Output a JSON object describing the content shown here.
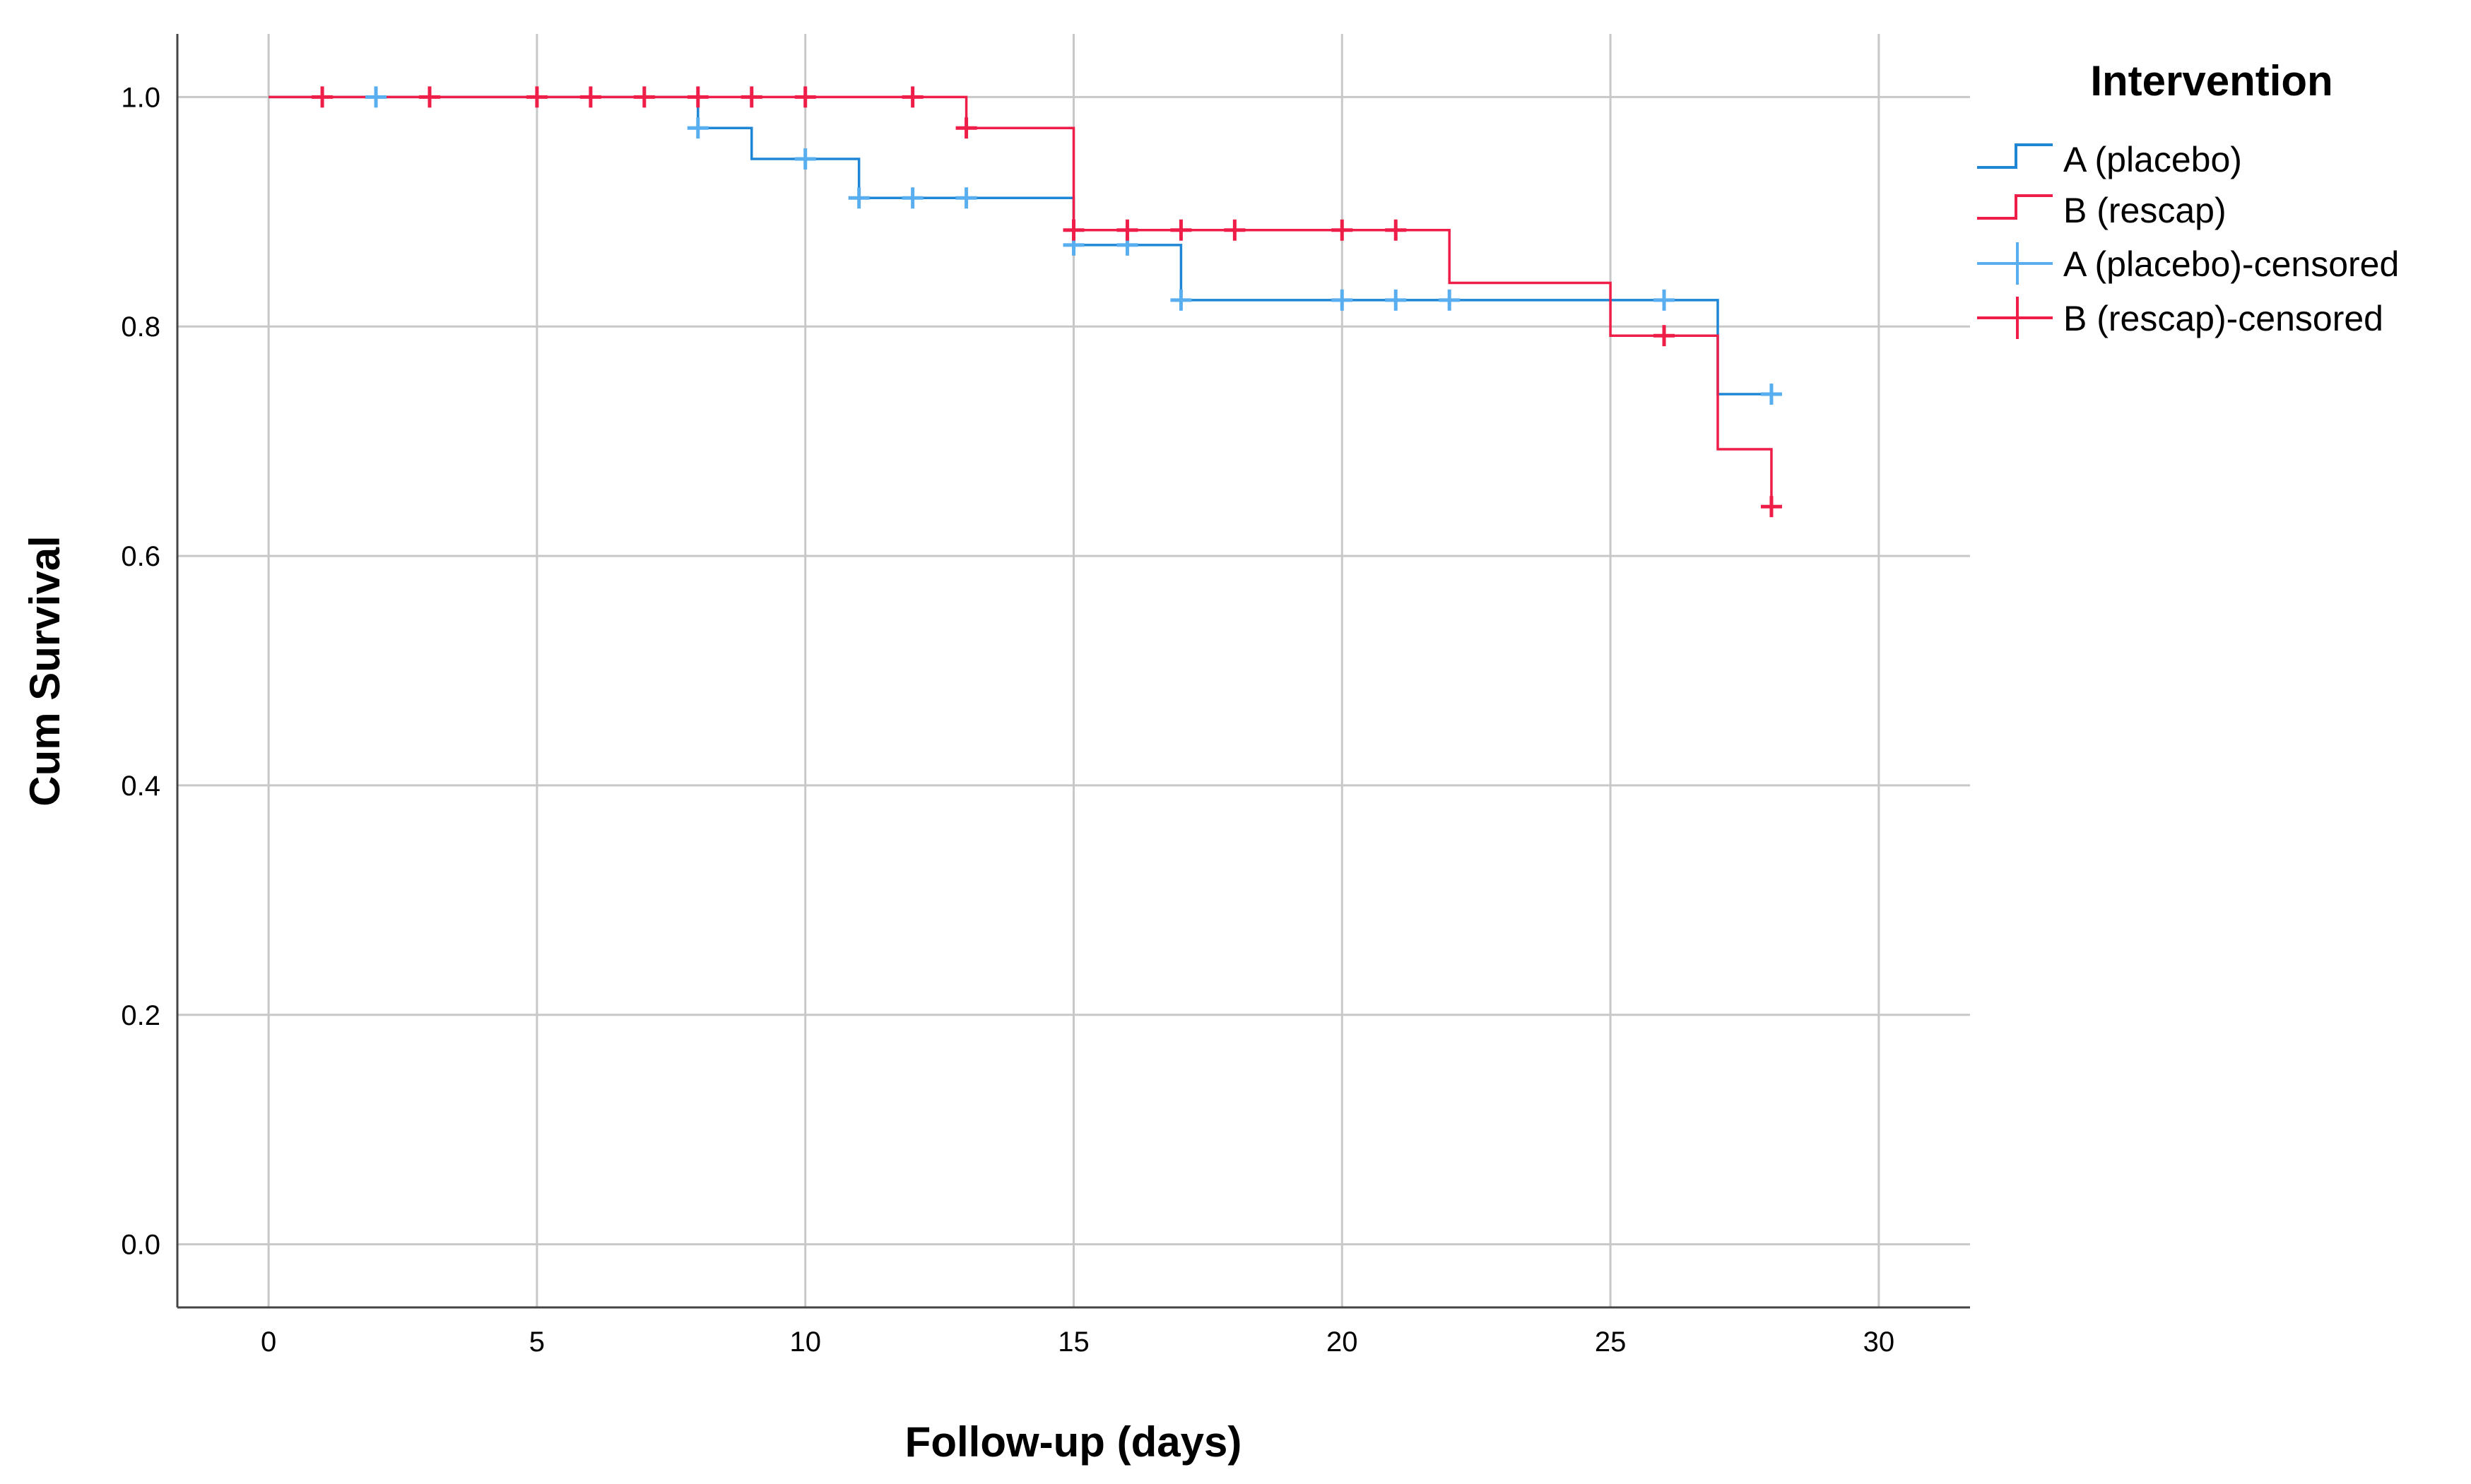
{
  "chart_data": {
    "type": "line",
    "subtype": "kaplan-meier-step",
    "title": "",
    "xlabel": "Follow-up (days)",
    "ylabel": "Cum Survival",
    "xlim": [
      -1.7,
      31.7
    ],
    "ylim": [
      -0.055,
      1.055
    ],
    "x_ticks": [
      0,
      5,
      10,
      15,
      20,
      25,
      30
    ],
    "x_tick_labels": [
      "0",
      "5",
      "10",
      "15",
      "20",
      "25",
      "30"
    ],
    "y_ticks": [
      0.0,
      0.2,
      0.4,
      0.6,
      0.8,
      1.0
    ],
    "y_tick_labels": [
      "0.0",
      "0.2",
      "0.4",
      "0.6",
      "0.8",
      "1.0"
    ],
    "grid": true,
    "legend_placement": "right",
    "legend": {
      "title": "Intervention",
      "entries": [
        {
          "label": "A (placebo)",
          "kind": "line",
          "color": "#1f86d6"
        },
        {
          "label": "B (rescap)",
          "kind": "line",
          "color": "#ee1e48"
        },
        {
          "label": "A (placebo)-censored",
          "kind": "censor",
          "color": "#59aef0"
        },
        {
          "label": "B (rescap)-censored",
          "kind": "censor",
          "color": "#ee1e48"
        }
      ]
    },
    "series": [
      {
        "name": "A (placebo)",
        "color": "#1f86d6",
        "steps": [
          [
            0,
            1.0
          ],
          [
            8,
            0.973
          ],
          [
            9,
            0.946
          ],
          [
            11,
            0.912
          ],
          [
            15,
            0.871
          ],
          [
            17,
            0.823
          ],
          [
            27,
            0.741
          ],
          [
            28,
            0.741
          ]
        ],
        "censored": [
          [
            2,
            1.0
          ],
          [
            8,
            0.973
          ],
          [
            10,
            0.946
          ],
          [
            11,
            0.912
          ],
          [
            12,
            0.912
          ],
          [
            13,
            0.912
          ],
          [
            15,
            0.871
          ],
          [
            16,
            0.871
          ],
          [
            17,
            0.823
          ],
          [
            20,
            0.823
          ],
          [
            21,
            0.823
          ],
          [
            22,
            0.823
          ],
          [
            26,
            0.823
          ],
          [
            28,
            0.741
          ]
        ]
      },
      {
        "name": "B (rescap)",
        "color": "#ee1e48",
        "steps": [
          [
            0,
            1.0
          ],
          [
            13,
            0.973
          ],
          [
            15,
            0.884
          ],
          [
            22,
            0.838
          ],
          [
            25,
            0.792
          ],
          [
            27,
            0.693
          ],
          [
            28,
            0.643
          ]
        ],
        "censored": [
          [
            1,
            1.0
          ],
          [
            3,
            1.0
          ],
          [
            5,
            1.0
          ],
          [
            6,
            1.0
          ],
          [
            7,
            1.0
          ],
          [
            8,
            1.0
          ],
          [
            9,
            1.0
          ],
          [
            10,
            1.0
          ],
          [
            12,
            1.0
          ],
          [
            13,
            0.973
          ],
          [
            15,
            0.884
          ],
          [
            16,
            0.884
          ],
          [
            17,
            0.884
          ],
          [
            18,
            0.884
          ],
          [
            20,
            0.884
          ],
          [
            21,
            0.884
          ],
          [
            26,
            0.792
          ],
          [
            28,
            0.643
          ]
        ]
      }
    ]
  }
}
